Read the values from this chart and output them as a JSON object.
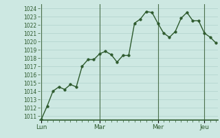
{
  "background_color": "#cde8e2",
  "grid_color": "#a8ccc6",
  "line_color": "#2d5a2d",
  "marker_color": "#2d5a2d",
  "day_sep_color": "#4a6e4a",
  "spine_color": "#2d5a2d",
  "tick_color": "#2d5a2d",
  "ylim": [
    1010.5,
    1024.5
  ],
  "xlim": [
    -0.3,
    30.3
  ],
  "day_labels": [
    "Lun",
    "Mar",
    "Mer",
    "Jeu"
  ],
  "day_positions": [
    0,
    10,
    20,
    28
  ],
  "x": [
    0,
    1,
    2,
    3,
    4,
    5,
    6,
    7,
    8,
    9,
    10,
    11,
    12,
    13,
    14,
    15,
    16,
    17,
    18,
    19,
    20,
    21,
    22,
    23,
    24,
    25,
    26,
    27,
    28,
    29,
    30
  ],
  "y": [
    1010.6,
    1012.2,
    1014.0,
    1014.5,
    1014.2,
    1014.8,
    1014.5,
    1017.0,
    1017.8,
    1017.8,
    1018.5,
    1018.8,
    1018.4,
    1017.5,
    1018.3,
    1018.3,
    1022.2,
    1022.7,
    1023.6,
    1023.5,
    1022.2,
    1021.0,
    1020.5,
    1021.2,
    1022.8,
    1023.5,
    1022.5,
    1022.5,
    1021.0,
    1020.5,
    1019.8
  ]
}
